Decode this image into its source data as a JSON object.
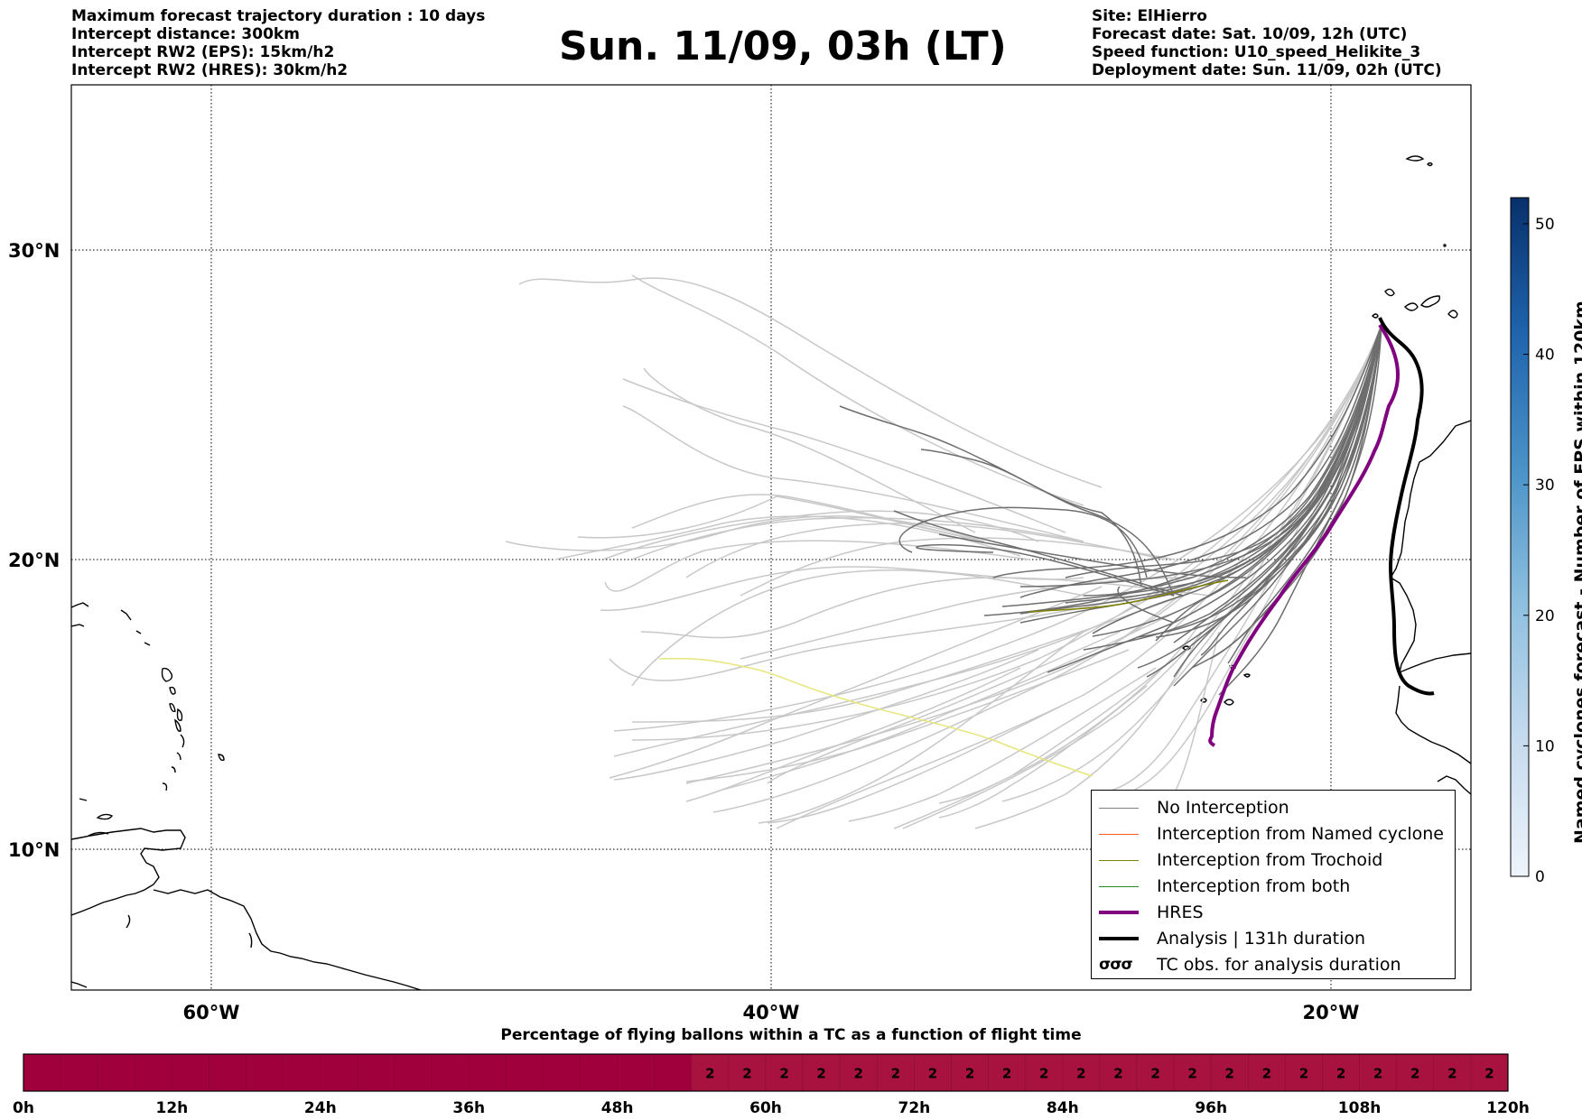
{
  "header_left": [
    "Maximum forecast trajectory duration : 10 days",
    "Intercept distance: 300km",
    "Intercept RW2 (EPS):  15km/h2",
    "Intercept RW2 (HRES): 30km/h2"
  ],
  "title": "Sun. 11/09, 03h (LT)",
  "header_right": [
    "Site: ElHierro",
    "Forecast date: Sat. 10/09, 12h (UTC)",
    "Speed function: U10_speed_Helikite_3",
    "Deployment date: Sun. 11/09, 02h (UTC)"
  ],
  "map": {
    "lon_range": [
      -65,
      15
    ],
    "lat_range": [
      5,
      35
    ],
    "lat_labels": [
      "30°N",
      "20°N",
      "10°N"
    ],
    "lon_labels": [
      "60°W",
      "40°W",
      "20°W"
    ],
    "grid": "dotted",
    "trajectory_groups": {
      "eps_far": "#c8c8c8",
      "eps_near": "#6e6e6e",
      "trochoid": "#808000",
      "yellow": "#e6e67a",
      "hres": "#800080",
      "analysis": "#000000"
    }
  },
  "legend": [
    {
      "label": "No Interception",
      "color": "#808080",
      "width": 1.5
    },
    {
      "label": "Interception from Named cyclone",
      "color": "#ff5a1e",
      "width": 1.5
    },
    {
      "label": "Interception from Trochoid",
      "color": "#808000",
      "width": 1.5
    },
    {
      "label": "Interception from both",
      "color": "#228b22",
      "width": 1.5
    },
    {
      "label": "HRES",
      "color": "#800080",
      "width": 4
    },
    {
      "label": "Analysis | 131h duration",
      "color": "#000000",
      "width": 4
    }
  ],
  "legend_tc": {
    "symbol": "σσσ",
    "label": "TC obs. for analysis duration"
  },
  "colorbar": {
    "label": "Named cyclones forecast - Number of EPS within 120km",
    "ticks": [
      "0",
      "10",
      "20",
      "30",
      "40",
      "50"
    ],
    "range": [
      0,
      52
    ],
    "color_low": "#e8f0fa",
    "color_high": "#08306b"
  },
  "percentage_bar": {
    "title": "Percentage of flying ballons within a TC as a function of flight time",
    "x_labels": [
      "0h",
      "12h",
      "24h",
      "36h",
      "48h",
      "60h",
      "72h",
      "84h",
      "96h",
      "108h",
      "120h"
    ],
    "values": [
      0,
      0,
      0,
      0,
      0,
      0,
      0,
      0,
      0,
      0,
      0,
      0,
      0,
      0,
      0,
      0,
      0,
      0,
      2,
      2,
      2,
      2,
      2,
      2,
      2,
      2,
      2,
      2,
      2,
      2,
      2,
      2,
      2,
      2,
      2,
      2,
      2,
      2,
      2,
      2
    ],
    "color_zero": "#a0003c",
    "color_nonzero": "#a8123e"
  }
}
